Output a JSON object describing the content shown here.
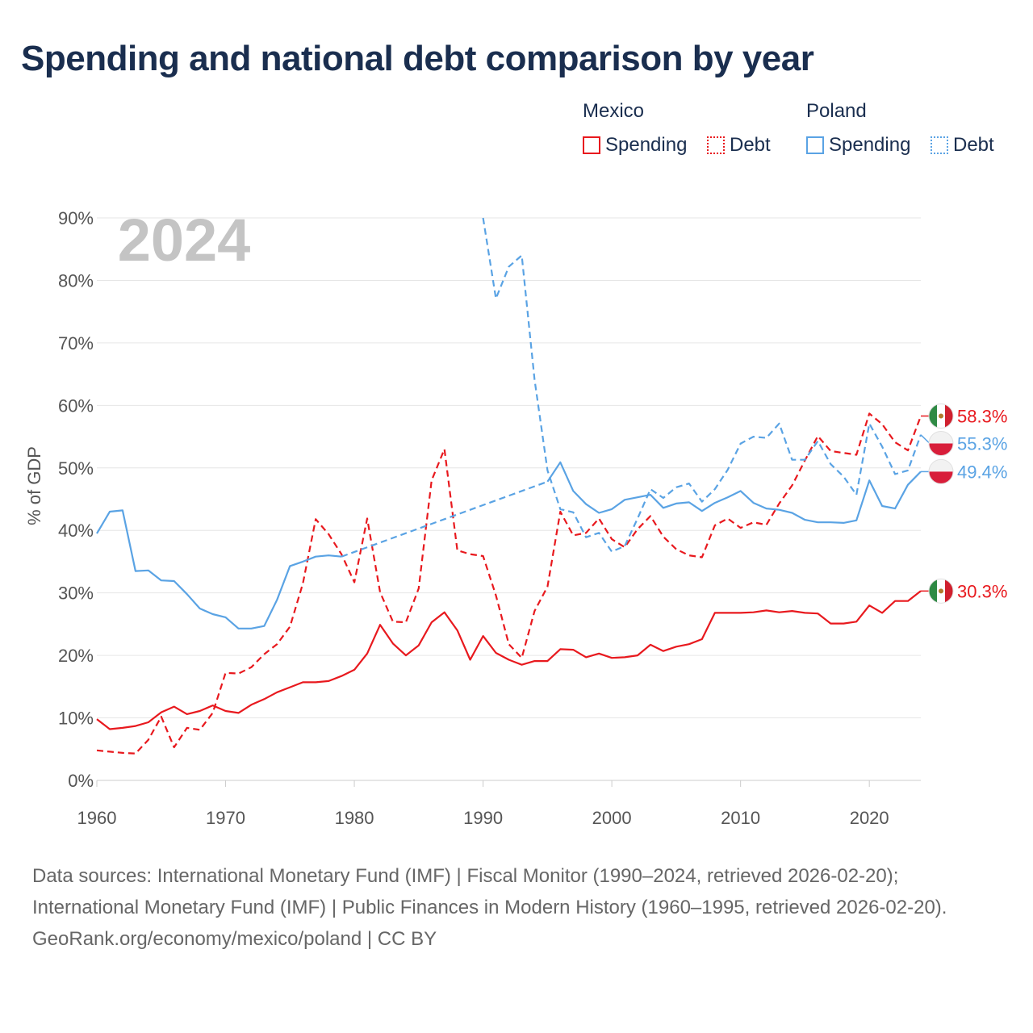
{
  "title": "Spending and national debt comparison by year",
  "year_label": "2024",
  "legend": {
    "groups": [
      {
        "country": "Mexico",
        "items": [
          {
            "label": "Spending",
            "style": "solid",
            "color": "#e8191e"
          },
          {
            "label": "Debt",
            "style": "dotted",
            "color": "#e8191e"
          }
        ]
      },
      {
        "country": "Poland",
        "items": [
          {
            "label": "Spending",
            "style": "solid",
            "color": "#5aa3e4"
          },
          {
            "label": "Debt",
            "style": "dotted",
            "color": "#5aa3e4"
          }
        ]
      }
    ]
  },
  "footer": {
    "sources": "Data sources: International Monetary Fund (IMF) | Fiscal Monitor (1990–2024, retrieved 2026-02-20); International Monetary Fund (IMF) | Public Finances in Modern History (1960–1995, retrieved 2026-02-20).",
    "credit": "GeoRank.org/economy/mexico/poland | CC BY"
  },
  "chart_data": {
    "type": "line",
    "title": "Spending and national debt comparison by year",
    "xlabel": "",
    "ylabel": "% of GDP",
    "xlim": [
      1960,
      2024
    ],
    "ylim": [
      0,
      90
    ],
    "x_ticks": [
      1960,
      1970,
      1980,
      1990,
      2000,
      2010,
      2020
    ],
    "y_ticks": [
      0,
      10,
      20,
      30,
      40,
      50,
      60,
      70,
      80,
      90
    ],
    "grid": true,
    "series": [
      {
        "name": "Mexico Spending",
        "country": "Mexico",
        "flag": "mexico",
        "color": "#e8191e",
        "dash": "solid",
        "end_label": "30.3%",
        "points": [
          [
            1960,
            9.8
          ],
          [
            1961,
            8.2
          ],
          [
            1962,
            8.4
          ],
          [
            1963,
            8.7
          ],
          [
            1964,
            9.3
          ],
          [
            1965,
            10.9
          ],
          [
            1966,
            11.8
          ],
          [
            1967,
            10.6
          ],
          [
            1968,
            11.1
          ],
          [
            1969,
            12
          ],
          [
            1970,
            11.1
          ],
          [
            1971,
            10.8
          ],
          [
            1972,
            12.1
          ],
          [
            1973,
            13
          ],
          [
            1974,
            14.1
          ],
          [
            1975,
            14.9
          ],
          [
            1976,
            15.7
          ],
          [
            1977,
            15.7
          ],
          [
            1978,
            15.9
          ],
          [
            1979,
            16.7
          ],
          [
            1980,
            17.7
          ],
          [
            1981,
            20.3
          ],
          [
            1982,
            24.9
          ],
          [
            1983,
            21.9
          ],
          [
            1984,
            20
          ],
          [
            1985,
            21.6
          ],
          [
            1986,
            25.3
          ],
          [
            1987,
            26.9
          ],
          [
            1988,
            24
          ],
          [
            1989,
            19.3
          ],
          [
            1990,
            23.1
          ],
          [
            1991,
            20.4
          ],
          [
            1992,
            19.3
          ],
          [
            1993,
            18.5
          ],
          [
            1994,
            19.1
          ],
          [
            1995,
            19.1
          ],
          [
            1996,
            21
          ],
          [
            1997,
            20.9
          ],
          [
            1998,
            19.7
          ],
          [
            1999,
            20.3
          ],
          [
            2000,
            19.6
          ],
          [
            2001,
            19.7
          ],
          [
            2002,
            20
          ],
          [
            2003,
            21.7
          ],
          [
            2004,
            20.7
          ],
          [
            2005,
            21.4
          ],
          [
            2006,
            21.8
          ],
          [
            2007,
            22.6
          ],
          [
            2008,
            26.8
          ],
          [
            2009,
            26.8
          ],
          [
            2010,
            26.8
          ],
          [
            2011,
            26.9
          ],
          [
            2012,
            27.2
          ],
          [
            2013,
            26.9
          ],
          [
            2014,
            27.1
          ],
          [
            2015,
            26.8
          ],
          [
            2016,
            26.7
          ],
          [
            2017,
            25.1
          ],
          [
            2018,
            25.1
          ],
          [
            2019,
            25.4
          ],
          [
            2020,
            28
          ],
          [
            2021,
            26.8
          ],
          [
            2022,
            28.7
          ],
          [
            2023,
            28.7
          ],
          [
            2024,
            30.3
          ]
        ]
      },
      {
        "name": "Mexico Debt",
        "country": "Mexico",
        "flag": "mexico",
        "color": "#e8191e",
        "dash": "dashed",
        "end_label": "58.3%",
        "points": [
          [
            1960,
            4.8
          ],
          [
            1961,
            4.6
          ],
          [
            1962,
            4.4
          ],
          [
            1963,
            4.3
          ],
          [
            1964,
            6.5
          ],
          [
            1965,
            10.2
          ],
          [
            1966,
            5.3
          ],
          [
            1967,
            8.4
          ],
          [
            1968,
            8.1
          ],
          [
            1969,
            10.8
          ],
          [
            1970,
            17.2
          ],
          [
            1971,
            17.1
          ],
          [
            1972,
            18.1
          ],
          [
            1973,
            20.2
          ],
          [
            1974,
            21.8
          ],
          [
            1975,
            24.6
          ],
          [
            1976,
            31.5
          ],
          [
            1977,
            41.8
          ],
          [
            1978,
            39.4
          ],
          [
            1979,
            36.2
          ],
          [
            1980,
            31.7
          ],
          [
            1981,
            41.9
          ],
          [
            1982,
            30.1
          ],
          [
            1983,
            25.4
          ],
          [
            1984,
            25.3
          ],
          [
            1985,
            30.7
          ],
          [
            1986,
            48
          ],
          [
            1987,
            53
          ],
          [
            1988,
            36.8
          ],
          [
            1989,
            36.2
          ],
          [
            1990,
            35.9
          ],
          [
            1991,
            29.6
          ],
          [
            1992,
            21.8
          ],
          [
            1993,
            19.6
          ],
          [
            1994,
            27.1
          ],
          [
            1995,
            31
          ],
          [
            1996,
            43
          ],
          [
            1997,
            39.2
          ],
          [
            1998,
            39.6
          ],
          [
            1999,
            41.9
          ],
          [
            2000,
            38.6
          ],
          [
            2001,
            37.3
          ],
          [
            2002,
            40.2
          ],
          [
            2003,
            42.3
          ],
          [
            2004,
            39
          ],
          [
            2005,
            37
          ],
          [
            2006,
            36
          ],
          [
            2007,
            35.7
          ],
          [
            2008,
            40.8
          ],
          [
            2009,
            41.9
          ],
          [
            2010,
            40.4
          ],
          [
            2011,
            41.3
          ],
          [
            2012,
            40.9
          ],
          [
            2013,
            44.3
          ],
          [
            2014,
            47.2
          ],
          [
            2015,
            51.2
          ],
          [
            2016,
            55.1
          ],
          [
            2017,
            52.7
          ],
          [
            2018,
            52.4
          ],
          [
            2019,
            52.1
          ],
          [
            2020,
            58.7
          ],
          [
            2021,
            57
          ],
          [
            2022,
            54.1
          ],
          [
            2023,
            52.8
          ],
          [
            2024,
            58.3
          ]
        ]
      },
      {
        "name": "Poland Spending",
        "country": "Poland",
        "flag": "poland",
        "color": "#5aa3e4",
        "dash": "solid",
        "end_label": "49.4%",
        "points": [
          [
            1960,
            39.5
          ],
          [
            1961,
            43
          ],
          [
            1962,
            43.2
          ],
          [
            1963,
            33.5
          ],
          [
            1964,
            33.6
          ],
          [
            1965,
            32
          ],
          [
            1966,
            31.9
          ],
          [
            1967,
            29.8
          ],
          [
            1968,
            27.5
          ],
          [
            1969,
            26.6
          ],
          [
            1970,
            26.1
          ],
          [
            1971,
            24.3
          ],
          [
            1972,
            24.3
          ],
          [
            1973,
            24.7
          ],
          [
            1974,
            28.9
          ],
          [
            1975,
            34.3
          ],
          [
            1976,
            35
          ],
          [
            1977,
            35.8
          ],
          [
            1978,
            36
          ],
          [
            1979,
            35.8
          ],
          [
            1995,
            47.8
          ],
          [
            1996,
            50.9
          ],
          [
            1997,
            46.3
          ],
          [
            1998,
            44.2
          ],
          [
            1999,
            42.8
          ],
          [
            2000,
            43.4
          ],
          [
            2001,
            44.9
          ],
          [
            2002,
            45.3
          ],
          [
            2003,
            45.7
          ],
          [
            2004,
            43.6
          ],
          [
            2005,
            44.3
          ],
          [
            2006,
            44.5
          ],
          [
            2007,
            43.1
          ],
          [
            2008,
            44.4
          ],
          [
            2009,
            45.3
          ],
          [
            2010,
            46.3
          ],
          [
            2011,
            44.4
          ],
          [
            2012,
            43.5
          ],
          [
            2013,
            43.3
          ],
          [
            2014,
            42.8
          ],
          [
            2015,
            41.7
          ],
          [
            2016,
            41.3
          ],
          [
            2017,
            41.3
          ],
          [
            2018,
            41.2
          ],
          [
            2019,
            41.6
          ],
          [
            2020,
            48
          ],
          [
            2021,
            43.9
          ],
          [
            2022,
            43.5
          ],
          [
            2023,
            47.3
          ],
          [
            2024,
            49.4
          ]
        ]
      },
      {
        "name": "Poland Debt",
        "country": "Poland",
        "flag": "poland",
        "color": "#5aa3e4",
        "dash": "dashed",
        "end_label": "55.3%",
        "points": [
          [
            1990,
            90
          ],
          [
            1991,
            77.1
          ],
          [
            1992,
            82.2
          ],
          [
            1993,
            84
          ],
          [
            1994,
            64.1
          ],
          [
            1995,
            49.6
          ],
          [
            1996,
            43.4
          ],
          [
            1997,
            42.9
          ],
          [
            1998,
            38.9
          ],
          [
            1999,
            39.6
          ],
          [
            2000,
            36.6
          ],
          [
            2001,
            37.5
          ],
          [
            2002,
            41.9
          ],
          [
            2003,
            46.6
          ],
          [
            2004,
            45.2
          ],
          [
            2005,
            46.9
          ],
          [
            2006,
            47.5
          ],
          [
            2007,
            44.6
          ],
          [
            2008,
            46.6
          ],
          [
            2009,
            49.7
          ],
          [
            2010,
            53.9
          ],
          [
            2011,
            55
          ],
          [
            2012,
            54.8
          ],
          [
            2013,
            57.1
          ],
          [
            2014,
            51.3
          ],
          [
            2015,
            51.3
          ],
          [
            2016,
            54.3
          ],
          [
            2017,
            50.6
          ],
          [
            2018,
            48.6
          ],
          [
            2019,
            45.7
          ],
          [
            2020,
            57.1
          ],
          [
            2021,
            53.4
          ],
          [
            2022,
            49
          ],
          [
            2023,
            49.6
          ],
          [
            2024,
            55.3
          ]
        ]
      }
    ],
    "bridges": [
      {
        "series": "Poland Spending",
        "from": [
          1979,
          35.8
        ],
        "to": [
          1995,
          47.8
        ],
        "note": "dashed interpolation over missing years"
      }
    ]
  }
}
